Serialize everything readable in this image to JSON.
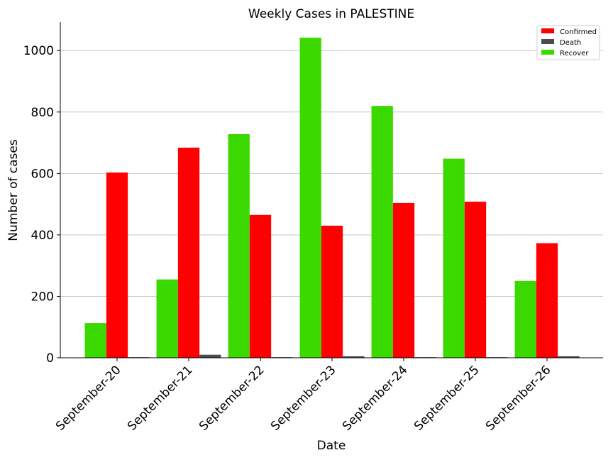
{
  "chart_data": {
    "type": "bar",
    "title": "Weekly Cases in PALESTINE",
    "xlabel": "Date",
    "ylabel": "Number of cases",
    "categories": [
      "September-20",
      "September-21",
      "September-22",
      "September-23",
      "September-24",
      "September-25",
      "September-26"
    ],
    "series": [
      {
        "name": "Recover",
        "color": "#3cd900",
        "values": [
          113,
          255,
          728,
          1042,
          820,
          648,
          250
        ]
      },
      {
        "name": "Confirmed",
        "color": "#ff0000",
        "values": [
          603,
          684,
          465,
          430,
          504,
          508,
          373
        ]
      },
      {
        "name": "Death",
        "color": "#4d4d4d",
        "values": [
          2,
          10,
          2,
          5,
          2,
          2,
          5
        ]
      }
    ],
    "legend_order": [
      "Confirmed",
      "Death",
      "Recover"
    ],
    "ylim": [
      0,
      1093
    ],
    "yticks": [
      0,
      200,
      400,
      600,
      800,
      1000
    ],
    "grid": "horizontal",
    "legend_position": "top-right"
  }
}
